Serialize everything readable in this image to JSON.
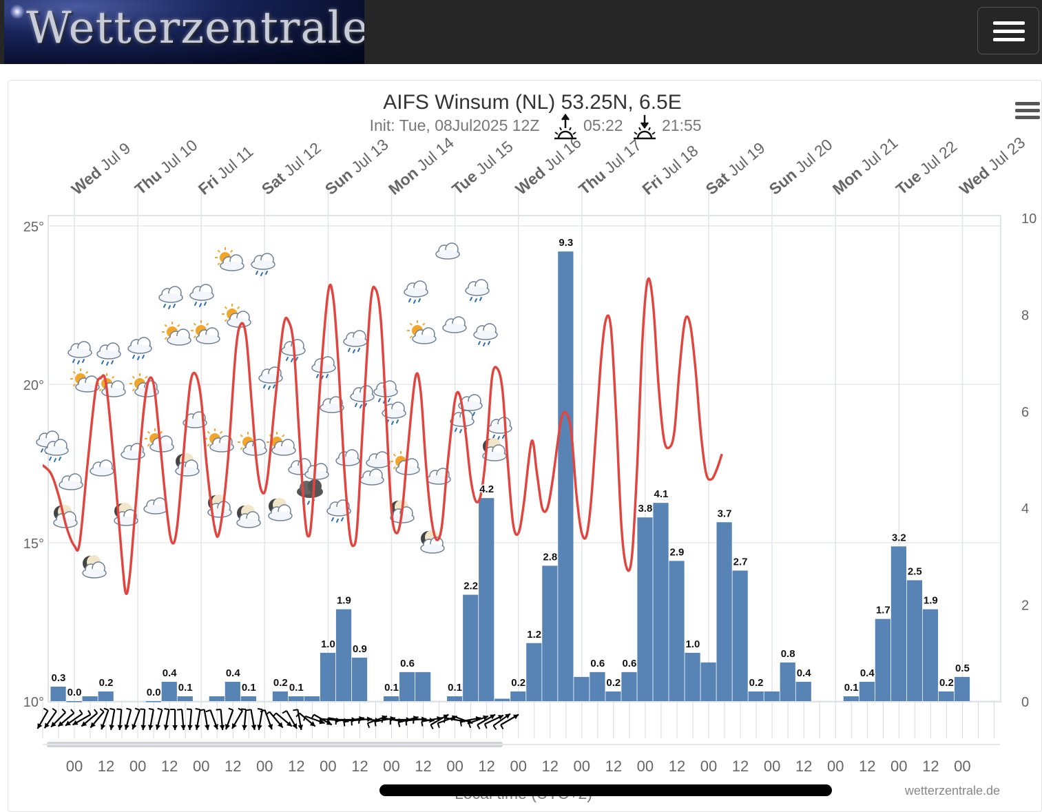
{
  "header": {
    "logo_text": "Wetterzentrale",
    "menu_icon": "hamburger-icon"
  },
  "chart_menu_icon": "hamburger-icon",
  "title": "AIFS Winsum (NL) 53.25N, 6.5E",
  "subtitle": {
    "init": "Init: Tue, 08Jul2025 12Z",
    "sunrise": "05:22",
    "sunset": "21:55",
    "sunrise_icon": "sunrise-icon",
    "sunset_icon": "sunset-icon"
  },
  "credit": "wetterzentrale.de",
  "xaxis_title": "Local time (UTC+2)",
  "colors": {
    "temperature": "#e0463f",
    "precipitation": "#5784b4",
    "grid": "#e4e6ec",
    "axis_text": "#666666"
  },
  "chart_data": {
    "type": "bar+line",
    "title": "AIFS Winsum (NL) 53.25N, 6.5E",
    "xlabel": "Local time (UTC+2)",
    "day_labels": [
      {
        "wd": "Wed",
        "md": "Jul 9"
      },
      {
        "wd": "Thu",
        "md": "Jul 10"
      },
      {
        "wd": "Fri",
        "md": "Jul 11"
      },
      {
        "wd": "Sat",
        "md": "Jul 12"
      },
      {
        "wd": "Sun",
        "md": "Jul 13"
      },
      {
        "wd": "Mon",
        "md": "Jul 14"
      },
      {
        "wd": "Tue",
        "md": "Jul 15"
      },
      {
        "wd": "Wed",
        "md": "Jul 16"
      },
      {
        "wd": "Thu",
        "md": "Jul 17"
      },
      {
        "wd": "Fri",
        "md": "Jul 18"
      },
      {
        "wd": "Sat",
        "md": "Jul 19"
      },
      {
        "wd": "Sun",
        "md": "Jul 20"
      },
      {
        "wd": "Mon",
        "md": "Jul 21"
      },
      {
        "wd": "Tue",
        "md": "Jul 22"
      },
      {
        "wd": "Wed",
        "md": "Jul 23"
      }
    ],
    "x_tick_labels": [
      "00",
      "12",
      "00",
      "12",
      "00",
      "12",
      "00",
      "12",
      "00",
      "12",
      "00",
      "12",
      "00",
      "12",
      "00",
      "12",
      "00",
      "12",
      "00",
      "12",
      "00",
      "12",
      "00",
      "12",
      "00",
      "12",
      "00",
      "12",
      "00"
    ],
    "y_left": {
      "ticks": [
        "10°",
        "15°",
        "20°",
        "25°"
      ],
      "range": [
        10,
        25
      ],
      "unit": "°C"
    },
    "y_right": {
      "ticks": [
        "0",
        "2",
        "4",
        "6",
        "8",
        "10"
      ],
      "range": [
        0,
        10
      ],
      "unit": "mm"
    },
    "precipitation": {
      "x_hours": [
        -12,
        -6,
        0,
        6,
        12,
        18,
        24,
        30,
        36,
        42,
        48,
        54,
        60,
        66,
        72,
        78,
        84,
        90,
        96,
        102,
        108,
        114,
        120,
        126,
        132,
        138,
        144,
        150,
        156,
        162,
        168,
        174,
        180,
        186,
        192,
        198,
        204,
        210,
        216,
        222,
        228,
        234,
        240,
        246,
        252,
        258,
        264,
        270,
        276,
        282,
        288,
        294,
        300,
        306,
        312,
        318,
        324,
        330,
        336,
        342,
        348
      ],
      "values": [
        null,
        0.3,
        0.0,
        0.1,
        0.2,
        null,
        null,
        0.0,
        0.4,
        0.1,
        null,
        0.1,
        0.4,
        0.1,
        null,
        0.2,
        0.1,
        0.1,
        1.0,
        1.9,
        0.9,
        null,
        0.1,
        0.6,
        0.6,
        null,
        0.1,
        2.2,
        4.2,
        0.05,
        0.2,
        1.2,
        2.8,
        9.3,
        0.5,
        0.6,
        0.2,
        0.6,
        3.8,
        4.1,
        2.9,
        1.0,
        0.8,
        3.7,
        2.7,
        0.2,
        0.2,
        0.8,
        0.4,
        null,
        null,
        0.1,
        0.4,
        1.7,
        3.2,
        2.5,
        1.9,
        0.2,
        0.5,
        null,
        null
      ],
      "labels": [
        null,
        "0.3",
        "0.0",
        null,
        "0.2",
        null,
        null,
        "0.0",
        "0.4",
        "0.1",
        null,
        null,
        "0.4",
        "0.1",
        null,
        "0.2",
        "0.1",
        null,
        "1.0",
        "1.9",
        "0.9",
        null,
        "0.1",
        "0.6",
        null,
        null,
        "0.1",
        "2.2",
        "4.2",
        null,
        "0.2",
        "1.2",
        "2.8",
        "9.3",
        null,
        "0.6",
        "0.2",
        "0.6",
        "3.8",
        "4.1",
        "2.9",
        "1.0",
        null,
        "3.7",
        "2.7",
        "0.2",
        null,
        "0.8",
        "0.4",
        null,
        null,
        "0.1",
        "0.4",
        "1.7",
        "3.2",
        "2.5",
        "1.9",
        "0.2",
        "0.5",
        null,
        null
      ]
    },
    "temperature": [
      [
        -13,
        17.5
      ],
      [
        -9,
        17.2
      ],
      [
        -6,
        16.5
      ],
      [
        -3,
        15.5
      ],
      [
        0,
        14.9
      ],
      [
        2,
        15.0
      ],
      [
        5,
        17.5
      ],
      [
        8,
        19.8
      ],
      [
        10,
        20.2
      ],
      [
        12,
        20.0
      ],
      [
        15,
        17.5
      ],
      [
        18,
        14.5
      ],
      [
        19.5,
        13.4
      ],
      [
        21,
        14.0
      ],
      [
        23,
        16.0
      ],
      [
        26,
        19.0
      ],
      [
        28,
        20.1
      ],
      [
        30,
        20.0
      ],
      [
        32,
        18.5
      ],
      [
        35,
        16.0
      ],
      [
        37,
        15.0
      ],
      [
        39,
        15.6
      ],
      [
        42,
        18.5
      ],
      [
        44,
        20.1
      ],
      [
        46,
        20.3
      ],
      [
        48,
        19.5
      ],
      [
        50,
        17.5
      ],
      [
        53,
        15.5
      ],
      [
        55,
        15.4
      ],
      [
        58,
        17.5
      ],
      [
        61,
        21.0
      ],
      [
        63,
        21.9
      ],
      [
        65,
        21.5
      ],
      [
        67,
        19.5
      ],
      [
        69,
        17.5
      ],
      [
        71,
        16.6
      ],
      [
        73,
        17.0
      ],
      [
        76,
        19.5
      ],
      [
        79,
        21.8
      ],
      [
        81,
        22.0
      ],
      [
        83,
        21.2
      ],
      [
        85,
        18.5
      ],
      [
        87,
        16.0
      ],
      [
        88.5,
        15.2
      ],
      [
        90,
        16.0
      ],
      [
        93,
        20.0
      ],
      [
        96,
        22.9
      ],
      [
        98,
        22.7
      ],
      [
        100,
        20.5
      ],
      [
        102,
        17.5
      ],
      [
        104,
        15.4
      ],
      [
        105.5,
        14.9
      ],
      [
        107,
        15.5
      ],
      [
        109,
        18.5
      ],
      [
        112,
        22.5
      ],
      [
        114,
        23.0
      ],
      [
        116,
        22.0
      ],
      [
        118,
        19.0
      ],
      [
        120,
        16.0
      ],
      [
        122,
        15.3
      ],
      [
        124,
        16.0
      ],
      [
        126,
        17.8
      ],
      [
        129,
        20.2
      ],
      [
        131,
        19.8
      ],
      [
        133,
        17.5
      ],
      [
        135,
        15.8
      ],
      [
        137,
        15.1
      ],
      [
        139,
        15.5
      ],
      [
        141,
        17.3
      ],
      [
        144,
        19.5
      ],
      [
        146,
        19.6
      ],
      [
        148,
        18.5
      ],
      [
        150,
        17.0
      ],
      [
        152,
        16.3
      ],
      [
        154,
        16.6
      ],
      [
        156,
        18.0
      ],
      [
        158,
        20.2
      ],
      [
        160,
        20.5
      ],
      [
        162,
        19.8
      ],
      [
        164,
        17.5
      ],
      [
        166,
        15.6
      ],
      [
        168,
        15.3
      ],
      [
        170,
        16.2
      ],
      [
        173,
        18.2
      ],
      [
        175,
        17.2
      ],
      [
        177,
        16.1
      ],
      [
        179,
        16.1
      ],
      [
        181,
        17.0
      ],
      [
        184,
        18.8
      ],
      [
        186,
        19.1
      ],
      [
        188,
        18.5
      ],
      [
        190,
        16.5
      ],
      [
        192,
        15.3
      ],
      [
        194,
        15.3
      ],
      [
        196,
        16.8
      ],
      [
        199,
        20.5
      ],
      [
        201,
        22.0
      ],
      [
        203,
        21.8
      ],
      [
        205,
        19.0
      ],
      [
        207,
        15.5
      ],
      [
        209,
        14.2
      ],
      [
        211,
        14.6
      ],
      [
        213,
        17.5
      ],
      [
        215,
        21.5
      ],
      [
        217,
        23.3
      ],
      [
        219,
        22.5
      ],
      [
        221,
        20.0
      ],
      [
        223,
        18.3
      ],
      [
        225,
        18.0
      ],
      [
        227,
        18.5
      ],
      [
        229,
        20.5
      ],
      [
        231,
        22.0
      ],
      [
        233,
        21.9
      ],
      [
        235,
        20.5
      ],
      [
        237,
        18.5
      ],
      [
        239,
        17.2
      ],
      [
        241,
        17.0
      ],
      [
        243,
        17.3
      ],
      [
        245,
        17.8
      ]
    ],
    "weather_icons_note": "icons shown along the temperature curve: clouds with rain, partly sunny, night partly cloudy",
    "wind_barbs_note": "wind arrows drawn along the bottom of the chart"
  }
}
